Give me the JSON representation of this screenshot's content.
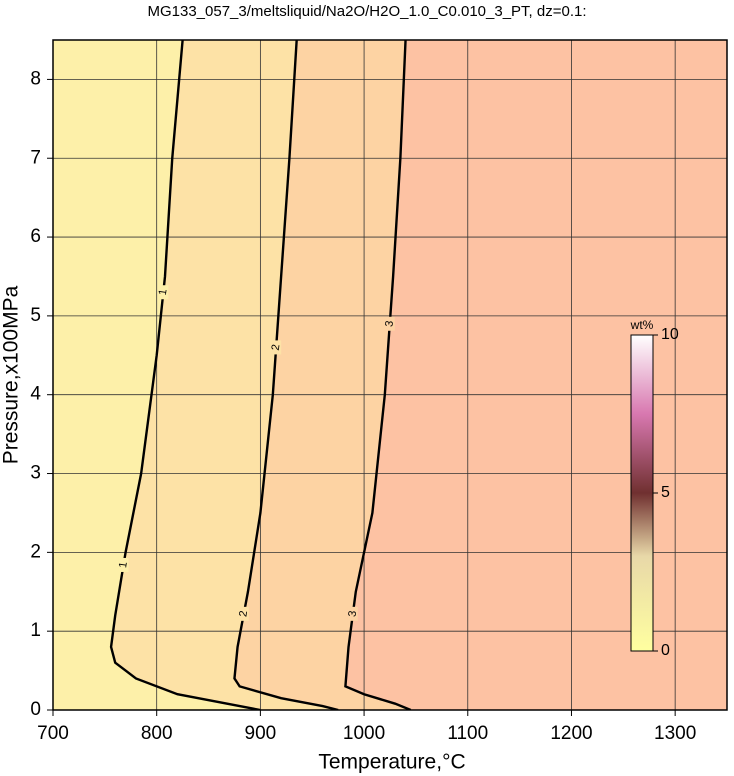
{
  "chart_data": {
    "type": "contour",
    "title": "MG133_057_3/meltsliquid/Na2O/H2O_1.0_C0.010_3_PT, dz=0.1:",
    "x_label": "Temperature,°C",
    "y_label": "Pressure,x100MPa",
    "xlim": [
      700,
      1350
    ],
    "xticks": [
      700,
      800,
      900,
      1000,
      1100,
      1200,
      1300
    ],
    "ylim": [
      0,
      8.5
    ],
    "yticks": [
      0,
      1,
      2,
      3,
      4,
      5,
      6,
      7,
      8
    ],
    "grid": true,
    "background_color": "#fdc2a3",
    "series": [
      {
        "name": "3",
        "color": "#000000",
        "fill": "#fdd3a3",
        "x": [
          1040,
          1035,
          1028,
          1020,
          1008,
          992,
          985,
          982,
          1000,
          1030,
          1045
        ],
        "y": [
          8.5,
          7,
          5.5,
          4,
          2.5,
          1.5,
          0.8,
          0.3,
          0.2,
          0.08,
          0
        ]
      },
      {
        "name": "2",
        "color": "#000000",
        "fill": "#fde2a6",
        "x": [
          935,
          928,
          920,
          912,
          900,
          888,
          878,
          875,
          880,
          920,
          960,
          975
        ],
        "y": [
          8.5,
          7,
          5.5,
          4,
          2.5,
          1.5,
          0.8,
          0.4,
          0.3,
          0.15,
          0.05,
          0
        ]
      },
      {
        "name": "1",
        "color": "#000000",
        "fill": "#fdf0a9",
        "x": [
          825,
          815,
          808,
          800,
          785,
          770,
          760,
          756,
          760,
          780,
          820,
          880,
          900
        ],
        "y": [
          8.5,
          7,
          5.5,
          4.5,
          3,
          2,
          1.2,
          0.8,
          0.6,
          0.4,
          0.2,
          0.05,
          0
        ]
      }
    ],
    "colorbar": {
      "label": "wt%",
      "lim": [
        0,
        10
      ],
      "ticks": [
        0,
        5,
        10
      ]
    }
  }
}
